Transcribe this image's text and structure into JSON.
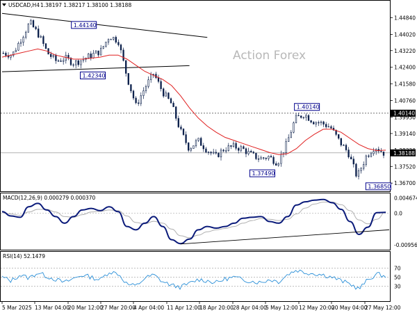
{
  "header": {
    "symbol": "USDCAD,H4",
    "ohlc": "1.38197 1.38217 1.38100 1.38188"
  },
  "watermark": "Action Forex",
  "chart_data": [
    {
      "type": "candlestick",
      "panel": "price",
      "title": "USDCAD,H4 1.38197 1.38217 1.38100 1.38188",
      "ylim": [
        1.364,
        1.453
      ],
      "y_ticks": [
        "1.44840",
        "1.44020",
        "1.43220",
        "1.42400",
        "1.41580",
        "1.40760",
        "1.39950",
        "1.39140",
        "1.38320",
        "1.37520",
        "1.36700"
      ],
      "y_tick_values": [
        1.4484,
        1.4402,
        1.4322,
        1.424,
        1.4158,
        1.4076,
        1.3995,
        1.3914,
        1.3832,
        1.3752,
        1.367
      ],
      "current_price": {
        "label": "1.38188",
        "value": 1.38188
      },
      "horizontal_levels": [
        {
          "label": "1.40140",
          "value": 1.4014,
          "style": "dotted"
        }
      ],
      "annotations": [
        {
          "label": "1.44140",
          "value": 1.4414
        },
        {
          "label": "1.42340",
          "value": 1.4234
        },
        {
          "label": "1.40140",
          "value": 1.4014
        },
        {
          "label": "1.37490",
          "value": 1.3749
        },
        {
          "label": "1.36850",
          "value": 1.3685
        }
      ],
      "close_path": [
        1.431,
        1.43,
        1.438,
        1.446,
        1.44,
        1.431,
        1.427,
        1.4285,
        1.426,
        1.428,
        1.43,
        1.432,
        1.4395,
        1.437,
        1.419,
        1.405,
        1.414,
        1.421,
        1.412,
        1.406,
        1.393,
        1.384,
        1.388,
        1.3835,
        1.38,
        1.384,
        1.385,
        1.384,
        1.381,
        1.379,
        1.38,
        1.377,
        1.386,
        1.3985,
        1.401,
        1.3975,
        1.3965,
        1.3945,
        1.3875,
        1.382,
        1.37,
        1.38,
        1.385,
        1.3819
      ],
      "moving_average": [
        1.429,
        1.43,
        1.431,
        1.432,
        1.433,
        1.432,
        1.43,
        1.429,
        1.428,
        1.428,
        1.4285,
        1.429,
        1.43,
        1.43,
        1.428,
        1.425,
        1.422,
        1.42,
        1.418,
        1.415,
        1.41,
        1.404,
        1.399,
        1.395,
        1.392,
        1.3895,
        1.388,
        1.3865,
        1.385,
        1.3835,
        1.382,
        1.381,
        1.3815,
        1.384,
        1.388,
        1.391,
        1.3935,
        1.3935,
        1.392,
        1.389,
        1.386,
        1.384,
        1.383,
        1.3832
      ],
      "trendlines": [
        {
          "from": [
            0,
            1.4505
          ],
          "to": [
            23,
            1.4387
          ]
        },
        {
          "from": [
            0,
            1.4218
          ],
          "to": [
            21,
            1.4248
          ]
        }
      ]
    },
    {
      "type": "line",
      "panel": "macd",
      "title": "MACD(12,26,9) 0.000279 0.000370",
      "ylim": [
        -0.0104,
        0.0052
      ],
      "y_ticks": [
        "0.004674",
        "0.0",
        "-0.009568"
      ],
      "y_tick_values": [
        0.004674,
        0.0,
        -0.009568
      ],
      "series": [
        {
          "values": [
            0.0005,
            -0.0008,
            -0.0012,
            0.002,
            0.003,
            0.001,
            -0.001,
            -0.003,
            -0.001,
            0.001,
            0.0015,
            0.0008,
            0.002,
            0.0005,
            -0.004,
            -0.005,
            -0.003,
            -0.001,
            -0.004,
            -0.008,
            -0.0092,
            -0.0078,
            -0.005,
            -0.004,
            -0.0045,
            -0.004,
            -0.003,
            -0.0015,
            -0.0012,
            -0.001,
            -0.0025,
            -0.003,
            -0.001,
            0.0025,
            0.0035,
            0.004,
            0.0042,
            0.0032,
            0.0012,
            -0.0025,
            -0.0064,
            -0.0042,
            0.0002,
            0.0003
          ]
        },
        {
          "values": [
            0.0002,
            -0.0002,
            -0.0006,
            0.0004,
            0.0012,
            0.0012,
            0.0004,
            -0.001,
            -0.0012,
            -0.0004,
            0.0004,
            0.0006,
            0.001,
            0.0008,
            -0.0008,
            -0.0028,
            -0.0032,
            -0.0024,
            -0.003,
            -0.0048,
            -0.0068,
            -0.0074,
            -0.0066,
            -0.0056,
            -0.005,
            -0.0046,
            -0.004,
            -0.003,
            -0.0022,
            -0.0016,
            -0.0018,
            -0.0022,
            -0.0018,
            -0.0002,
            0.0016,
            0.0028,
            0.0034,
            0.0034,
            0.0026,
            0.0008,
            -0.002,
            -0.0032,
            -0.0018,
            0.0004
          ]
        }
      ],
      "trendlines": [
        {
          "from": [
            20,
            -0.0093
          ],
          "to": [
            43,
            -0.005
          ]
        }
      ]
    },
    {
      "type": "line",
      "panel": "rsi",
      "title": "RSI(14) 52.1479",
      "ylim": [
        0,
        100
      ],
      "y_ticks": [
        "70",
        "50",
        "30"
      ],
      "y_tick_values": [
        70,
        50,
        30
      ],
      "series": [
        {
          "values": [
            50,
            42,
            55,
            48,
            60,
            52,
            45,
            38,
            47,
            55,
            50,
            44,
            62,
            58,
            35,
            30,
            48,
            55,
            40,
            32,
            28,
            36,
            45,
            42,
            38,
            46,
            50,
            44,
            41,
            38,
            45,
            40,
            56,
            66,
            60,
            58,
            55,
            50,
            42,
            35,
            24,
            44,
            57,
            52
          ]
        }
      ]
    }
  ],
  "x_axis": {
    "labels": [
      "5 Mar 2025",
      "13 Mar 04:00",
      "20 Mar 12:00",
      "27 Mar 20:00",
      "4 Apr 04:00",
      "11 Apr 12:00",
      "18 Apr 20:00",
      "28 Apr 04:00",
      "5 May 12:00",
      "12 May 20:00",
      "20 May 04:00",
      "27 May 12:00"
    ]
  }
}
